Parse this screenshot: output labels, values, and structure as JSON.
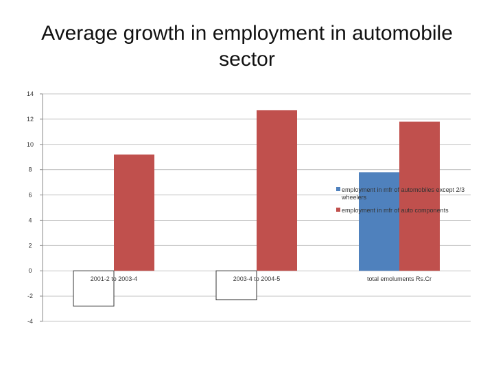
{
  "slide": {
    "title_line1": "Average growth in employment in automobile",
    "title_line2": "sector"
  },
  "chart_data": {
    "type": "bar",
    "title": "",
    "categories": [
      "2001-2 to 2003-4",
      "2003-4 to 2004-5",
      "total emoluments Rs.Cr"
    ],
    "series": [
      {
        "name": "employment in mfr of automobiles except 2/3 wheelers",
        "legend_lines": [
          "employment in mfr of automobiles except 2/3",
          "wheelers"
        ],
        "color": "#4F81BD",
        "values": [
          -2.8,
          -2.3,
          7.8
        ]
      },
      {
        "name": "employment in mfr of auto components",
        "legend_lines": [
          "employment in mfr of auto components"
        ],
        "color": "#C0504D",
        "values": [
          9.2,
          12.7,
          11.8
        ]
      }
    ],
    "ylim": [
      -4,
      14
    ],
    "yticks": [
      -4,
      -2,
      0,
      2,
      4,
      6,
      8,
      10,
      12,
      14
    ],
    "grid": true,
    "legend_position": "right"
  }
}
